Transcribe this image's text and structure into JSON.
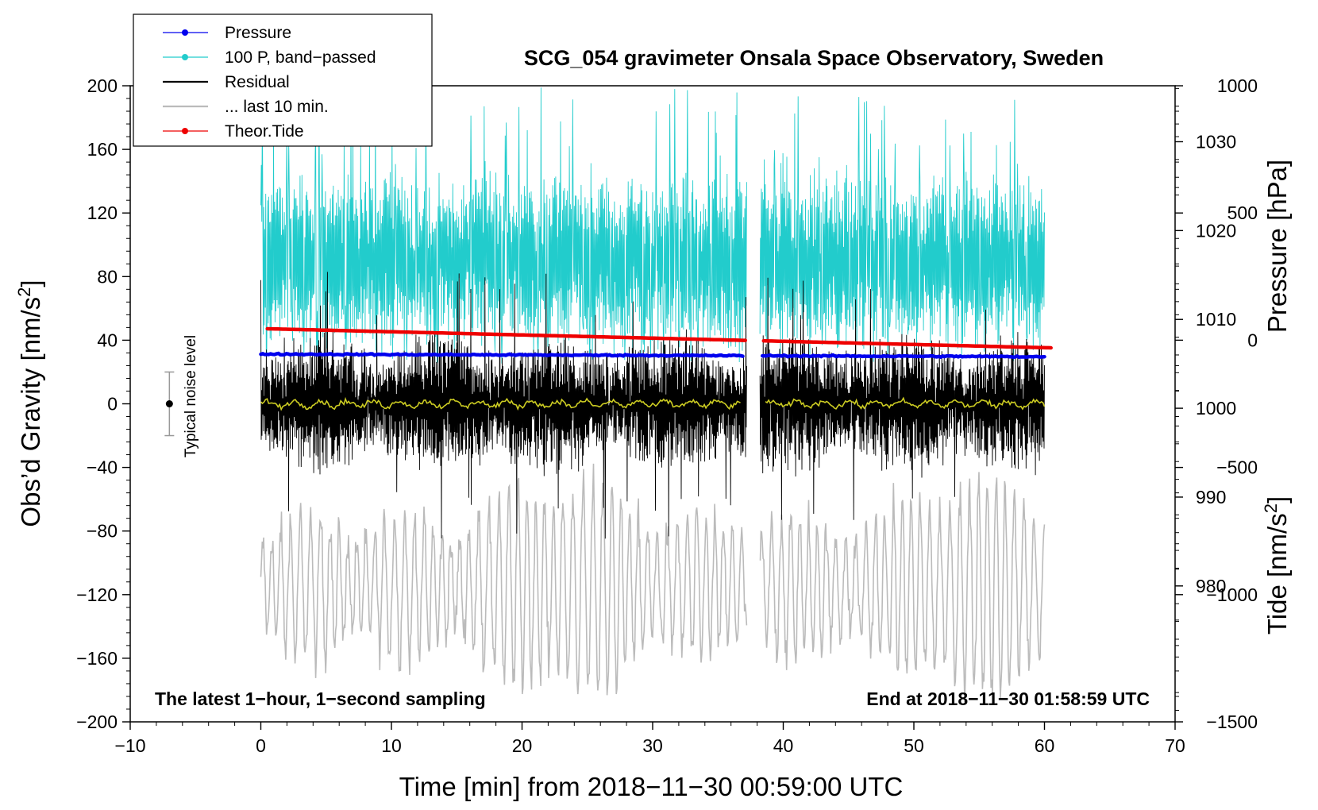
{
  "chart_data": {
    "type": "line",
    "title": "SCG_054 gravimeter Onsala Space Observatory, Sweden",
    "xlabel": "Time [min] from 2018−11−30 00:59:00 UTC",
    "ylabel_main": "Obs’d Gravity [nm/s",
    "ylabel_sup": "2",
    "ylabel_close": "]",
    "xlim": [
      -10,
      70
    ],
    "ylim": [
      -200,
      200
    ],
    "x_ticks": [
      -10,
      0,
      10,
      20,
      30,
      40,
      50,
      60,
      70
    ],
    "x_tick_labels": [
      "−10",
      "0",
      "10",
      "20",
      "30",
      "40",
      "50",
      "60",
      "70"
    ],
    "y_ticks": [
      200,
      160,
      120,
      80,
      40,
      0,
      -40,
      -80,
      -120,
      -160,
      -200
    ],
    "y_tick_labels": [
      "200",
      "160",
      "120",
      "80",
      "40",
      "0",
      "−40",
      "−80",
      "−120",
      "−160",
      "−200"
    ],
    "pressure_axis": {
      "label": "Pressure [hPa]",
      "range": [
        964.7,
        1036.3
      ],
      "ticks": [
        980,
        990,
        1000,
        1010,
        1020,
        1030
      ],
      "tick_labels": [
        "980",
        "990",
        "1000",
        "1010",
        "1020",
        "1030"
      ]
    },
    "tide_axis": {
      "label_main": "Tide [nm/s",
      "label_sup": "2",
      "label_close": "]",
      "range": [
        -1500,
        1000
      ],
      "ticks": [
        1000,
        500,
        0,
        -500,
        -1000,
        -1500
      ],
      "tick_labels": [
        "1000",
        "500",
        "0",
        "−500",
        "−1000",
        "−1500"
      ]
    },
    "gap": [
      37.2,
      38.2
    ],
    "series": [
      {
        "name": "Pressure",
        "color": "#0000ee",
        "axis": "pressure",
        "x_range": [
          0,
          60
        ],
        "start": 1006.1,
        "end": 1005.8
      },
      {
        "name": "100 P, band−passed",
        "color": "#22cccc",
        "axis": "main",
        "x_range": [
          0,
          60
        ],
        "baseline": 90,
        "amplitude": 40
      },
      {
        "name": "Residual",
        "color": "#000000",
        "axis": "main",
        "x_range": [
          0,
          60
        ],
        "baseline": 0,
        "amplitude": 35
      },
      {
        "name": "... last 10 min.",
        "color": "#bbbbbb",
        "axis": "main",
        "x_range": [
          0,
          60
        ],
        "baseline": -115,
        "amplitude": 45
      },
      {
        "name": "Theor.Tide",
        "color": "#ee0000",
        "axis": "tide",
        "x_range": [
          0.5,
          60.5
        ],
        "start": 45,
        "end": -30
      },
      {
        "name": "Smoothed residual",
        "color": "#cccc22",
        "axis": "main",
        "x_range": [
          0,
          60
        ],
        "baseline": 0,
        "amplitude": 3
      }
    ],
    "noise_bar": {
      "label": "Typical noise level",
      "x": -7,
      "center": 0,
      "half_range": 20
    },
    "annotation_left": "The latest 1−hour, 1−second sampling",
    "annotation_right": "End at 2018−11−30 01:58:59 UTC"
  },
  "legend": {
    "items": [
      {
        "label": "Pressure",
        "color": "#0000ee",
        "marker": true
      },
      {
        "label": "100 P, band−passed",
        "color": "#22cccc",
        "marker": true
      },
      {
        "label": "Residual",
        "color": "#000000",
        "marker": false
      },
      {
        "label": "... last 10 min.",
        "color": "#bbbbbb",
        "marker": false
      },
      {
        "label": "Theor.Tide",
        "color": "#ee0000",
        "marker": true
      }
    ]
  }
}
